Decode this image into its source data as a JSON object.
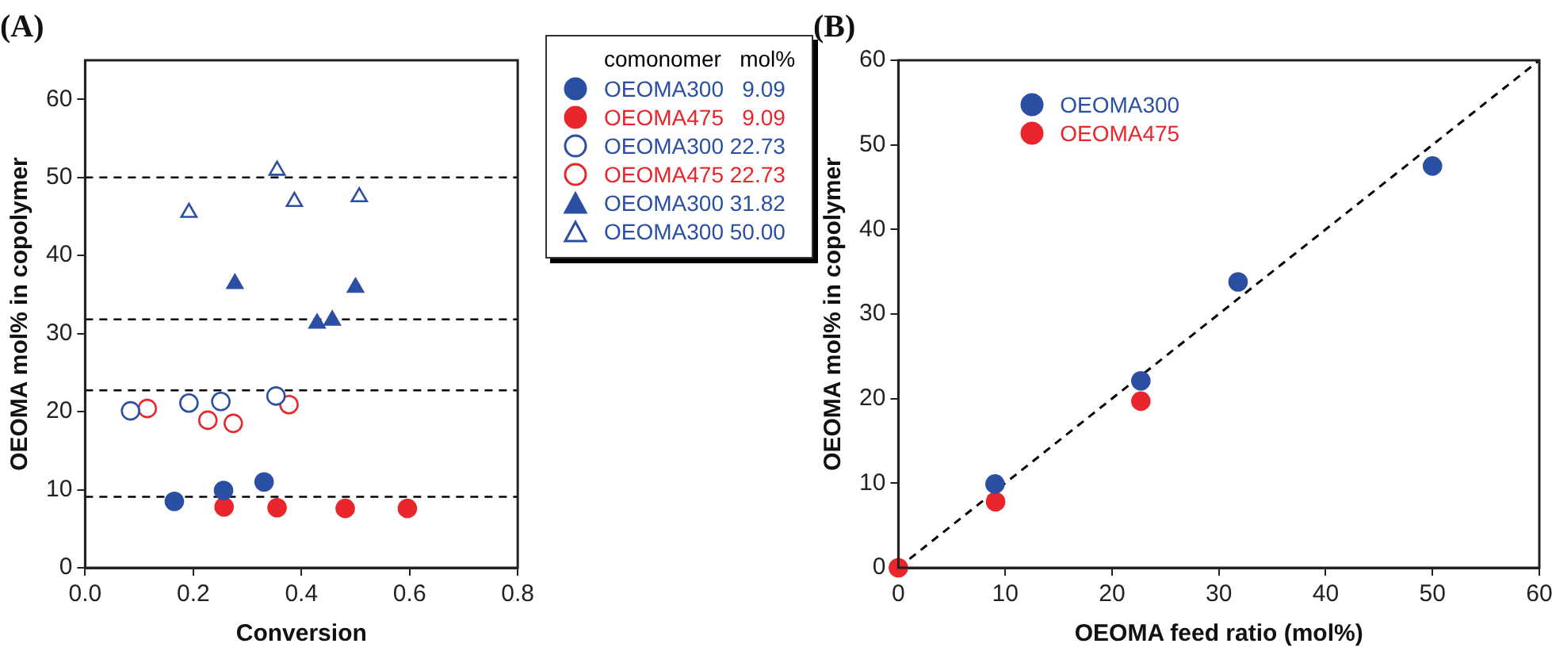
{
  "chart_data": [
    {
      "type": "scatter",
      "title": "(A)",
      "xlabel": "Conversion",
      "ylabel": "OEOMA mol% in copolymer",
      "legend_title": "comonomer   mol%",
      "legend": "right",
      "grid": false,
      "xlim": [
        0,
        0.8
      ],
      "xticks": [
        {
          "value": 0,
          "label": "0.0"
        },
        0.2,
        0.4,
        0.6,
        0.8
      ],
      "ylim": [
        0,
        65
      ],
      "yticks": [
        0,
        10,
        20,
        30,
        40,
        50,
        60
      ],
      "ref_lines": [
        {
          "axis": "y",
          "value": 50,
          "color": "#000000",
          "line_style": "dashed"
        },
        {
          "axis": "y",
          "value": 31.82,
          "color": "#000000",
          "line_style": "dashed"
        },
        {
          "axis": "y",
          "value": 22.73,
          "color": "#000000",
          "line_style": "dashed"
        },
        {
          "axis": "y",
          "value": 9.09,
          "color": "#000000",
          "line_style": "dashed"
        }
      ],
      "series": [
        {
          "name": "OEOMA300   9.09",
          "color": "#2a4fa3",
          "marker": "circle",
          "x": [
            0.165,
            0.256,
            0.331
          ],
          "values": [
            8.5,
            9.9,
            11.0
          ]
        },
        {
          "name": "OEOMA475   9.09",
          "color": "#e8262b",
          "marker": "circle",
          "x": [
            0.257,
            0.355,
            0.481,
            0.596
          ],
          "values": [
            7.8,
            7.7,
            7.6,
            7.6
          ]
        },
        {
          "name": "OEOMA300 22.73",
          "color": "#2a4fa3",
          "marker": "circle-open",
          "x": [
            0.084,
            0.192,
            0.251,
            0.353
          ],
          "values": [
            20.1,
            21.1,
            21.3,
            22.0
          ]
        },
        {
          "name": "OEOMA475 22.73",
          "color": "#e8262b",
          "marker": "circle-open",
          "x": [
            0.115,
            0.227,
            0.274,
            0.377
          ],
          "values": [
            20.4,
            18.9,
            18.5,
            20.9
          ]
        },
        {
          "name": "OEOMA300 31.82",
          "color": "#2a4fa3",
          "marker": "triangle",
          "x": [
            0.277,
            0.429,
            0.457,
            0.5
          ],
          "values": [
            36.4,
            31.3,
            31.7,
            35.9
          ]
        },
        {
          "name": "OEOMA300 50.00",
          "color": "#2a4fa3",
          "marker": "triangle-open",
          "x": [
            0.192,
            0.355,
            0.387,
            0.507
          ],
          "values": [
            45.5,
            50.9,
            46.9,
            47.5
          ]
        }
      ]
    },
    {
      "type": "scatter",
      "title": "(B)",
      "xlabel": "OEOMA feed ratio (mol%)",
      "ylabel": "OEOMA mol% in copolymer",
      "legend": "top left",
      "grid": false,
      "xlim": [
        0,
        60
      ],
      "xticks": [
        0,
        10,
        20,
        30,
        40,
        50,
        60
      ],
      "ylim": [
        0,
        60
      ],
      "yticks": [
        0,
        10,
        20,
        30,
        40,
        50,
        60
      ],
      "series": [
        {
          "name": "OEOMA300",
          "color": "#2a4fa3",
          "marker": "circle",
          "x": [
            9.05,
            22.7,
            31.8,
            50.0
          ],
          "values": [
            9.9,
            22.1,
            33.8,
            47.5
          ]
        },
        {
          "name": "OEOMA475",
          "color": "#e8262b",
          "marker": "circle",
          "x": [
            0,
            9.1,
            22.7
          ],
          "values": [
            0,
            7.8,
            19.7
          ]
        },
        {
          "type": "line",
          "color": "#000000",
          "line_style": "dashed",
          "marker": "none",
          "x": [
            0,
            60
          ],
          "values": [
            0,
            60
          ]
        }
      ]
    }
  ]
}
